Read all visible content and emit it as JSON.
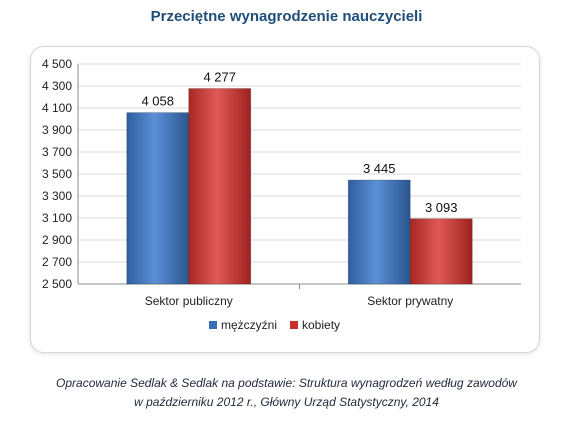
{
  "chart_data": {
    "type": "bar",
    "title": "Przeciętne wynagrodzenie nauczycieli",
    "categories": [
      "Sektor publiczny",
      "Sektor prywatny"
    ],
    "series": [
      {
        "name": "mężczyźni",
        "values": [
          4058,
          3445
        ],
        "labels": [
          "4 058",
          "3 445"
        ],
        "color": "#3a6fb8"
      },
      {
        "name": "kobiety",
        "values": [
          4277,
          3093
        ],
        "labels": [
          "4 277",
          "3 093"
        ],
        "color": "#c9302c"
      }
    ],
    "ylim": [
      2500,
      4500
    ],
    "yticks": [
      2500,
      2700,
      2900,
      3100,
      3300,
      3500,
      3700,
      3900,
      4100,
      4300,
      4500
    ],
    "ytick_labels": [
      "2 500",
      "2 700",
      "2 900",
      "3 100",
      "3 300",
      "3 500",
      "3 700",
      "3 900",
      "4 100",
      "4 300",
      "4 500"
    ],
    "grid": true,
    "legend": "bottom"
  },
  "source": {
    "line1": "Opracowanie Sedlak & Sedlak na podstawie: Struktura wynagrodzeń według zawodów",
    "line2": "w październiku 2012 r., Główny Urząd Statystyczny, 2014"
  }
}
